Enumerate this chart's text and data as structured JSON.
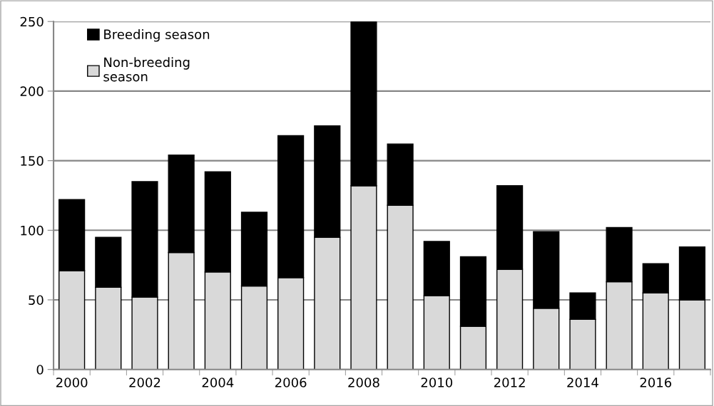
{
  "chart_data": {
    "type": "bar",
    "stacked": true,
    "categories": [
      "2000",
      null,
      "2002",
      null,
      "2004",
      null,
      "2006",
      null,
      "2008",
      null,
      "2010",
      null,
      "2012",
      null,
      "2014",
      null,
      "2016",
      null
    ],
    "series": [
      {
        "name": "Non-breeding season",
        "color": "#d9d9d9",
        "values": [
          71,
          59,
          52,
          84,
          70,
          60,
          66,
          95,
          132,
          118,
          53,
          31,
          72,
          44,
          36,
          63,
          55,
          50
        ]
      },
      {
        "name": "Breeding season",
        "color": "#000000",
        "values": [
          51,
          36,
          83,
          70,
          72,
          53,
          102,
          80,
          118,
          44,
          39,
          50,
          60,
          55,
          19,
          39,
          21,
          38
        ]
      }
    ],
    "ylim": [
      0,
      250
    ],
    "yticks": [
      0,
      50,
      100,
      150,
      200,
      250
    ],
    "grid": "y",
    "legend": "top left"
  }
}
